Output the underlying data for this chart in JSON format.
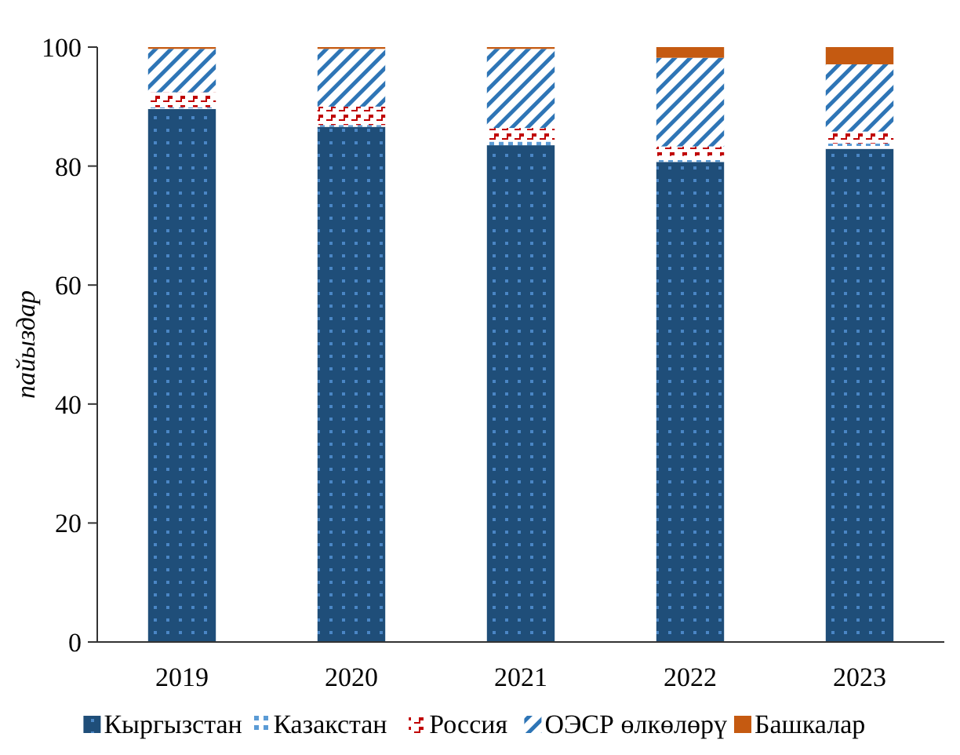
{
  "chart_data": {
    "type": "bar",
    "stacked": true,
    "ylabel": "пайыздар",
    "categories": [
      "2019",
      "2020",
      "2021",
      "2022",
      "2023"
    ],
    "ylim": [
      0,
      100
    ],
    "yticks": [
      0,
      20,
      40,
      60,
      80,
      100
    ],
    "legend": "bottom",
    "grid": false,
    "series": [
      {
        "name": "Кыргызстан",
        "color": "#1f4e79",
        "values": [
          89.6,
          86.6,
          83.5,
          80.7,
          82.9
        ]
      },
      {
        "name": "Казакстан",
        "color": "#5b9bd5",
        "values": [
          0.3,
          0.3,
          0.6,
          1.0,
          0.9
        ]
      },
      {
        "name": "Россия",
        "color": "#c00000",
        "values": [
          2.5,
          3.1,
          2.3,
          1.6,
          2.0
        ]
      },
      {
        "name": "ОЭСР өлкөлөрү",
        "color": "#2e75b6",
        "values": [
          7.3,
          9.7,
          13.3,
          14.9,
          11.3
        ]
      },
      {
        "name": "Башкалар",
        "color": "#c55a11",
        "values": [
          0.3,
          0.3,
          0.3,
          1.8,
          2.9
        ]
      }
    ]
  }
}
